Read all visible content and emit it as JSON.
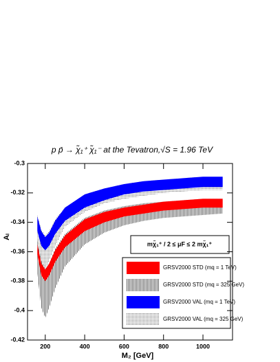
{
  "chart_data": {
    "type": "band",
    "title": "p p̄ → χ̃₁⁺ χ̃₁⁻ at the Tevatron,√S = 1.96 TeV",
    "x_label": "M₂ [GeV]",
    "y_label": "Aₗ",
    "annotation": "mχ̃₁⁺ / 2 ≤ μF ≤ 2 mχ̃₁⁺",
    "x": [
      160,
      180,
      200,
      220,
      250,
      300,
      400,
      500,
      600,
      700,
      800,
      900,
      1000,
      1100
    ],
    "xlim": [
      110,
      1150
    ],
    "xticks": [
      200,
      400,
      600,
      800,
      1000
    ],
    "ylim": [
      -0.42,
      -0.3
    ],
    "yticks": [
      -0.42,
      -0.4,
      -0.38,
      -0.36,
      -0.34,
      -0.32,
      -0.3
    ],
    "series": [
      {
        "name": "GRSV2000 STD (mq = 1 TeV)",
        "color": "#ff0000",
        "pattern": "solid",
        "upper": [
          -0.355,
          -0.368,
          -0.372,
          -0.368,
          -0.359,
          -0.349,
          -0.338,
          -0.333,
          -0.33,
          -0.328,
          -0.326,
          -0.325,
          -0.324,
          -0.324
        ],
        "lower": [
          -0.362,
          -0.376,
          -0.38,
          -0.376,
          -0.367,
          -0.357,
          -0.346,
          -0.34,
          -0.336,
          -0.334,
          -0.332,
          -0.331,
          -0.33,
          -0.33
        ]
      },
      {
        "name": "GRSV2000 STD (mq = 325 GeV)",
        "color": "#000000",
        "pattern": "vertical",
        "upper": [
          -0.352,
          -0.366,
          -0.372,
          -0.368,
          -0.358,
          -0.348,
          -0.337,
          -0.332,
          -0.329,
          -0.327,
          -0.326,
          -0.325,
          -0.324,
          -0.324
        ],
        "lower": [
          -0.375,
          -0.398,
          -0.405,
          -0.398,
          -0.385,
          -0.37,
          -0.355,
          -0.347,
          -0.342,
          -0.339,
          -0.337,
          -0.336,
          -0.335,
          -0.334
        ]
      },
      {
        "name": "GRSV2000 VAL (mq = 1 TeV)",
        "color": "#0000ff",
        "pattern": "solid",
        "upper": [
          -0.336,
          -0.346,
          -0.35,
          -0.347,
          -0.339,
          -0.33,
          -0.321,
          -0.317,
          -0.314,
          -0.312,
          -0.311,
          -0.31,
          -0.309,
          -0.309
        ],
        "lower": [
          -0.346,
          -0.356,
          -0.359,
          -0.356,
          -0.348,
          -0.339,
          -0.33,
          -0.325,
          -0.321,
          -0.319,
          -0.318,
          -0.317,
          -0.316,
          -0.316
        ]
      },
      {
        "name": "GRSV2000 VAL (mq = 325 GeV)",
        "color": "#555555",
        "pattern": "dots",
        "upper": [
          -0.335,
          -0.345,
          -0.349,
          -0.346,
          -0.338,
          -0.33,
          -0.321,
          -0.317,
          -0.314,
          -0.312,
          -0.311,
          -0.31,
          -0.309,
          -0.309
        ],
        "lower": [
          -0.355,
          -0.368,
          -0.372,
          -0.366,
          -0.356,
          -0.343,
          -0.333,
          -0.327,
          -0.324,
          -0.322,
          -0.32,
          -0.319,
          -0.318,
          -0.318
        ]
      }
    ]
  }
}
